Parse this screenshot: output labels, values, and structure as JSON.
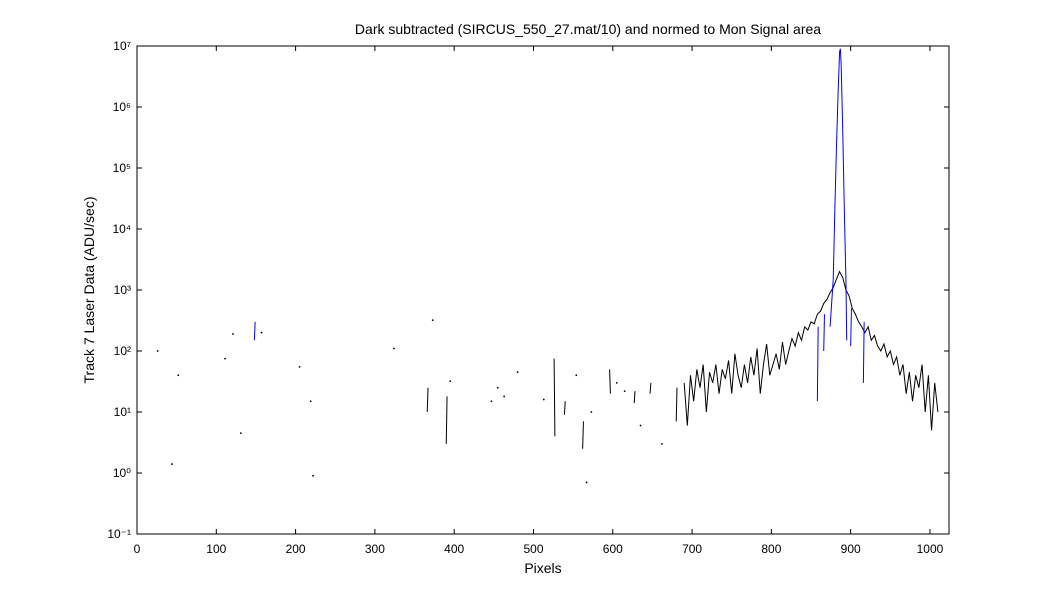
{
  "chart_data": {
    "type": "line",
    "title": "Dark subtracted (SIRCUS_550_27.mat/10) and normed to Mon Signal area",
    "xlabel": "Pixels",
    "ylabel": "Track 7 Laser Data (ADU/sec)",
    "log_y": true,
    "grid": false,
    "xlim": [
      0,
      1024
    ],
    "ylim": [
      0.1,
      10000000
    ],
    "xticks": [
      0,
      100,
      200,
      300,
      400,
      500,
      600,
      700,
      800,
      900,
      1000
    ],
    "yticks": [
      {
        "value": 0.1,
        "label": "10⁻¹"
      },
      {
        "value": 1,
        "label": "10⁰"
      },
      {
        "value": 10,
        "label": "10¹"
      },
      {
        "value": 100,
        "label": "10²"
      },
      {
        "value": 1000,
        "label": "10³"
      },
      {
        "value": 10000,
        "label": "10⁴"
      },
      {
        "value": 100000,
        "label": "10⁵"
      },
      {
        "value": 1000000,
        "label": "10⁶"
      },
      {
        "value": 10000000,
        "label": "10⁷"
      }
    ],
    "series": [
      {
        "color": "#000000",
        "x": [
          26,
          30,
          44,
          48,
          52,
          60,
          111,
          115,
          121,
          125,
          131,
          140,
          157,
          180,
          205,
          210,
          219,
          220,
          222,
          250,
          324,
          340,
          366,
          367,
          370,
          373,
          380,
          390,
          391,
          393,
          395,
          420,
          447,
          450,
          455,
          460,
          463,
          470,
          480,
          500,
          513,
          520,
          526,
          527,
          530,
          539,
          540,
          545,
          554,
          558,
          562,
          563,
          565,
          567,
          570,
          573,
          580,
          596,
          597,
          600,
          605,
          610,
          615,
          620,
          627,
          628,
          630,
          635,
          640,
          647,
          648,
          655,
          662,
          670,
          680,
          681,
          685,
          690,
          694,
          698,
          702,
          706,
          710,
          714,
          718,
          722,
          726,
          730,
          734,
          738,
          742,
          746,
          750,
          754,
          758,
          762,
          766,
          770,
          774,
          778,
          782,
          786,
          790,
          794,
          798,
          802,
          806,
          810,
          814,
          818,
          822,
          826,
          830,
          834,
          838,
          842,
          846,
          850,
          854,
          858,
          862,
          866,
          870,
          874,
          878,
          882,
          886,
          890,
          894,
          898,
          902,
          906,
          910,
          914,
          918,
          922,
          926,
          930,
          934,
          938,
          942,
          946,
          950,
          954,
          958,
          962,
          966,
          970,
          974,
          978,
          982,
          986,
          990,
          994,
          998,
          1002,
          1006,
          1010
        ],
        "values": [
          100,
          null,
          1.4,
          null,
          40,
          null,
          75,
          null,
          190,
          null,
          4.5,
          null,
          200,
          null,
          55,
          null,
          15,
          null,
          0.9,
          null,
          110,
          null,
          10,
          25,
          null,
          320,
          null,
          3,
          18,
          null,
          32,
          null,
          15,
          null,
          25,
          null,
          18,
          null,
          45,
          null,
          16,
          null,
          75,
          4,
          null,
          9,
          15,
          null,
          40,
          null,
          2.5,
          7,
          null,
          0.7,
          null,
          10,
          null,
          50,
          20,
          null,
          30,
          null,
          22,
          null,
          14,
          22,
          null,
          6,
          null,
          20,
          30,
          null,
          3,
          null,
          7,
          25,
          null,
          30,
          6,
          40,
          15,
          50,
          25,
          60,
          10,
          45,
          30,
          60,
          20,
          50,
          35,
          70,
          20,
          90,
          40,
          25,
          60,
          30,
          80,
          40,
          110,
          20,
          60,
          130,
          40,
          60,
          90,
          50,
          140,
          60,
          100,
          160,
          120,
          200,
          150,
          250,
          220,
          300,
          280,
          400,
          450,
          600,
          700,
          900,
          1100,
          1500,
          2000,
          1600,
          1000,
          800,
          500,
          400,
          300,
          250,
          200,
          250,
          150,
          180,
          120,
          100,
          130,
          80,
          100,
          60,
          80,
          40,
          60,
          20,
          45,
          15,
          40,
          25,
          60,
          10,
          40,
          5,
          30,
          10
        ]
      },
      {
        "color": "#0000ff",
        "x": [
          148,
          149,
          500,
          858,
          859,
          860,
          866,
          867,
          869,
          874,
          876,
          878,
          880,
          882,
          884,
          886,
          887,
          888,
          890,
          892,
          894,
          895,
          896,
          900,
          901,
          903,
          916,
          917
        ],
        "values": [
          150,
          300,
          null,
          15,
          250,
          null,
          100,
          400,
          null,
          250,
          600,
          1500,
          20000,
          200000,
          1500000,
          8000000,
          9000000,
          5000000,
          400000,
          20000,
          1500,
          150,
          null,
          120,
          500,
          null,
          30,
          300
        ]
      }
    ]
  }
}
